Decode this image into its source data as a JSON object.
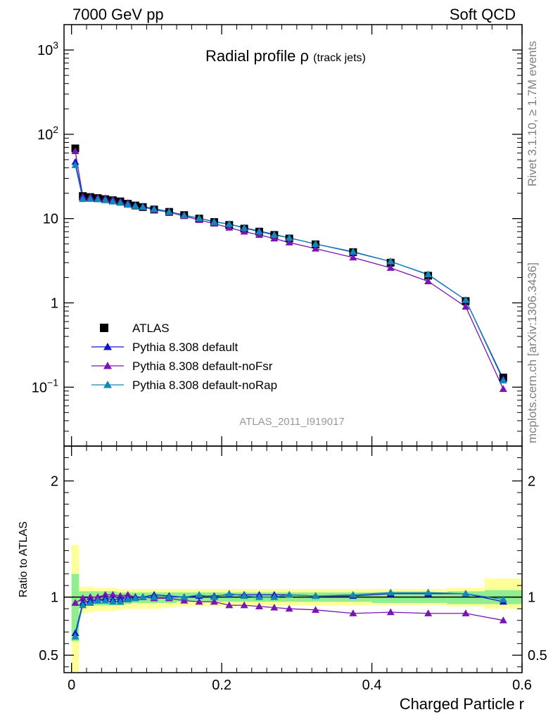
{
  "header": {
    "energy_label": "7000 GeV pp",
    "process_label": "Soft QCD"
  },
  "side_labels": {
    "rivet": "Rivet 3.1.10, ≥ 1.7M events",
    "mcplots": "mcplots.cern.ch [arXiv:1306.3436]"
  },
  "chart_data": [
    {
      "type": "scatter",
      "panel": "main",
      "title": "Radial profile",
      "title_symbol": "ρ",
      "title_suffix": "(track jets)",
      "watermark": "ATLAS_2011_I919017",
      "xlim": [
        -0.01,
        0.6
      ],
      "ylim": [
        0.02,
        2000
      ],
      "log_y": true,
      "y_tick_labels": [
        "10^-1",
        "1",
        "10",
        "10^2",
        "10^3"
      ],
      "legend_position": "lower-left",
      "x": [
        0.005,
        0.015,
        0.025,
        0.035,
        0.045,
        0.055,
        0.065,
        0.075,
        0.085,
        0.095,
        0.11,
        0.13,
        0.15,
        0.17,
        0.19,
        0.21,
        0.23,
        0.25,
        0.27,
        0.29,
        0.325,
        0.375,
        0.425,
        0.475,
        0.525,
        0.575
      ],
      "series": [
        {
          "name": "ATLAS",
          "marker": "square",
          "color": "#000000",
          "values": [
            68,
            18.5,
            18,
            17.5,
            17,
            16.5,
            16,
            15,
            14.3,
            13.7,
            12.8,
            12,
            11,
            10,
            9.1,
            8.4,
            7.6,
            7,
            6.4,
            5.8,
            4.95,
            4,
            3,
            2.1,
            1.05,
            0.13
          ]
        },
        {
          "name": "Pythia 8.308 default",
          "marker": "triangle",
          "color": "#1414cc",
          "values": [
            47,
            17.6,
            17.4,
            17,
            16.8,
            16.2,
            15.6,
            14.8,
            14.3,
            13.9,
            13.1,
            12.1,
            11,
            10.1,
            9.2,
            8.6,
            7.8,
            7.1,
            6.5,
            5.9,
            5.0,
            4.0,
            3.1,
            2.16,
            1.08,
            0.125
          ]
        },
        {
          "name": "Pythia 8.308 default-noFsr",
          "marker": "triangle",
          "color": "#7a14b4",
          "values": [
            63,
            18.3,
            18,
            17.5,
            17.4,
            16.8,
            16,
            15.3,
            14.3,
            13.7,
            12.7,
            11.9,
            10.7,
            9.6,
            8.7,
            7.8,
            7.0,
            6.4,
            5.8,
            5.2,
            4.4,
            3.45,
            2.6,
            1.8,
            0.9,
            0.095
          ]
        },
        {
          "name": "Pythia 8.308 default-noRap",
          "marker": "triangle",
          "color": "#1488b4",
          "values": [
            43,
            17,
            17.1,
            16.9,
            16.5,
            15.9,
            15.4,
            14.6,
            14.1,
            13.7,
            12.9,
            12.0,
            10.9,
            10.1,
            9.1,
            8.6,
            7.7,
            7.0,
            6.4,
            5.9,
            5.0,
            4.05,
            3.1,
            2.18,
            1.08,
            0.12
          ]
        }
      ]
    },
    {
      "type": "scatter",
      "panel": "ratio",
      "ylabel": "Ratio to ATLAS",
      "xlabel": "Charged Particle r",
      "xlim": [
        -0.01,
        0.6
      ],
      "ylim": [
        0.35,
        2.3
      ],
      "x_tick_labels": [
        "0",
        "0.2",
        "0.4",
        "0.6"
      ],
      "y_tick_labels": [
        "0.5",
        "1",
        "2"
      ],
      "bands": {
        "bin_edges": [
          0,
          0.01,
          0.02,
          0.03,
          0.04,
          0.05,
          0.06,
          0.07,
          0.08,
          0.09,
          0.1,
          0.12,
          0.14,
          0.16,
          0.18,
          0.2,
          0.22,
          0.24,
          0.26,
          0.28,
          0.3,
          0.35,
          0.4,
          0.45,
          0.5,
          0.55,
          0.6
        ],
        "stat_low": [
          0.62,
          0.92,
          0.93,
          0.93,
          0.93,
          0.93,
          0.93,
          0.94,
          0.95,
          0.95,
          0.95,
          0.95,
          0.96,
          0.96,
          0.96,
          0.96,
          0.96,
          0.96,
          0.96,
          0.96,
          0.96,
          0.96,
          0.95,
          0.95,
          0.94,
          0.94
        ],
        "stat_high": [
          1.2,
          1.05,
          1.05,
          1.05,
          1.05,
          1.05,
          1.04,
          1.04,
          1.04,
          1.04,
          1.04,
          1.04,
          1.04,
          1.04,
          1.04,
          1.04,
          1.04,
          1.04,
          1.04,
          1.04,
          1.04,
          1.04,
          1.04,
          1.04,
          1.05,
          1.06
        ],
        "total_low": [
          0.32,
          0.86,
          0.87,
          0.88,
          0.88,
          0.88,
          0.89,
          0.9,
          0.9,
          0.9,
          0.9,
          0.91,
          0.92,
          0.92,
          0.92,
          0.92,
          0.93,
          0.93,
          0.93,
          0.93,
          0.93,
          0.93,
          0.93,
          0.93,
          0.92,
          0.9
        ],
        "total_high": [
          1.45,
          1.09,
          1.09,
          1.08,
          1.08,
          1.08,
          1.07,
          1.07,
          1.07,
          1.07,
          1.07,
          1.07,
          1.07,
          1.07,
          1.07,
          1.07,
          1.07,
          1.07,
          1.07,
          1.07,
          1.07,
          1.07,
          1.07,
          1.07,
          1.08,
          1.16
        ],
        "stat_color": "#90ee90",
        "total_color": "#ffff99"
      },
      "series": [
        {
          "name": "Pythia 8.308 default",
          "values": [
            0.69,
            0.95,
            0.97,
            0.97,
            0.99,
            0.98,
            0.98,
            0.99,
            1.0,
            1.0,
            1.02,
            1.01,
            1.0,
            1.01,
            1.01,
            1.02,
            1.02,
            1.02,
            1.02,
            1.02,
            1.01,
            1.01,
            1.03,
            1.03,
            1.03,
            0.96
          ]
        },
        {
          "name": "Pythia 8.308 default-noFsr",
          "values": [
            0.95,
            0.99,
            1.0,
            1.0,
            1.02,
            1.02,
            1.01,
            1.02,
            1.0,
            1.0,
            0.99,
            0.99,
            0.97,
            0.96,
            0.96,
            0.93,
            0.93,
            0.92,
            0.91,
            0.9,
            0.89,
            0.86,
            0.87,
            0.86,
            0.86,
            0.8
          ]
        },
        {
          "name": "Pythia 8.308 default-noRap",
          "values": [
            0.66,
            0.93,
            0.95,
            0.97,
            0.97,
            0.96,
            0.96,
            0.98,
            0.99,
            1.0,
            1.0,
            1.0,
            1.0,
            1.02,
            1.0,
            1.03,
            1.01,
            1.0,
            1.0,
            1.02,
            1.01,
            1.02,
            1.04,
            1.04,
            1.03,
            0.98
          ]
        }
      ]
    }
  ]
}
